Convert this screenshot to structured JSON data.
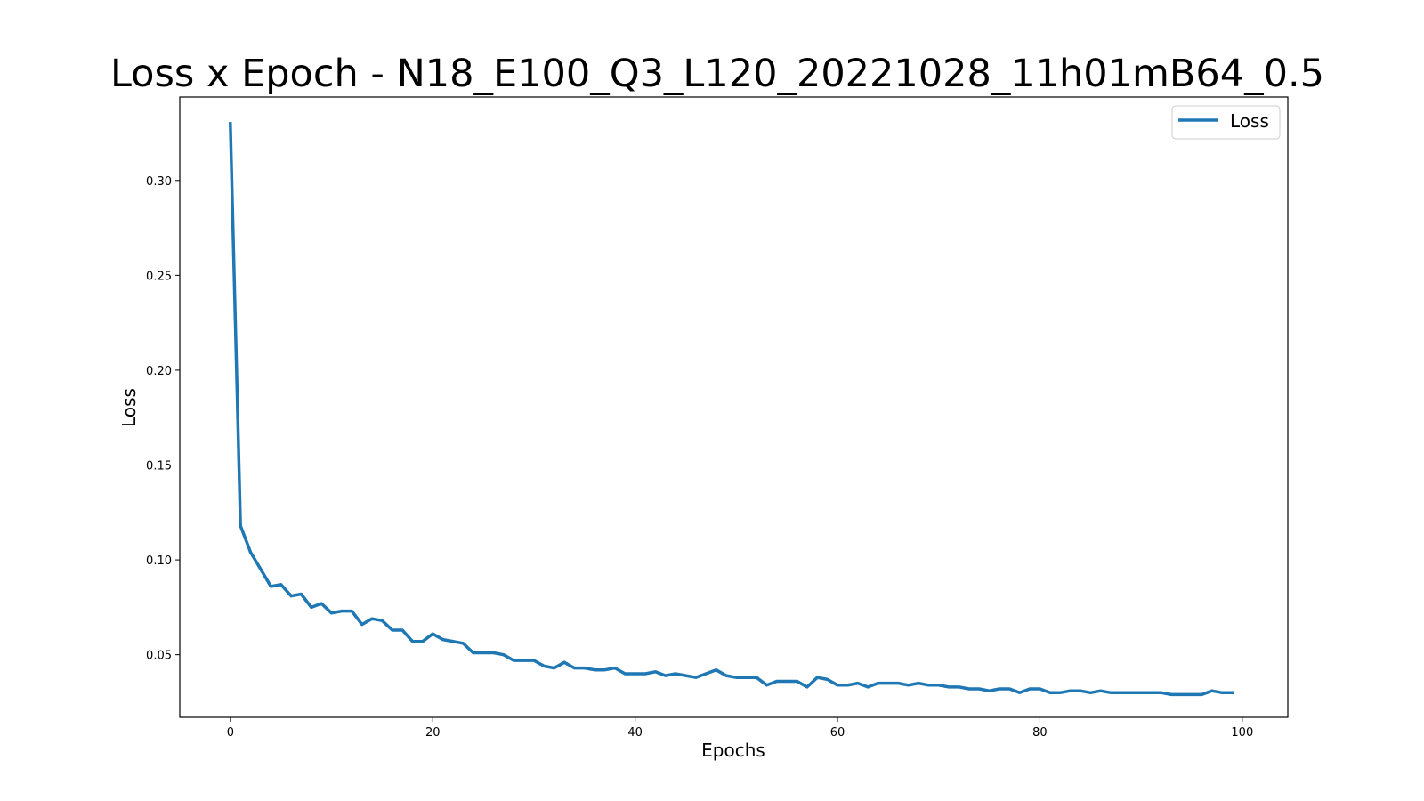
{
  "chart_data": {
    "type": "line",
    "title": "Loss x Epoch - N18_E100_Q3_L120_20221028_11h01mB64_0.5",
    "xlabel": "Epochs",
    "ylabel": "Loss",
    "xlim": [
      -5,
      104.5
    ],
    "ylim": [
      0.017,
      0.344
    ],
    "xticks": [
      0,
      20,
      40,
      60,
      80,
      100
    ],
    "xtick_labels": [
      "0",
      "20",
      "40",
      "60",
      "80",
      "100"
    ],
    "yticks": [
      0.05,
      0.1,
      0.15,
      0.2,
      0.25,
      0.3
    ],
    "ytick_labels": [
      "0.05",
      "0.10",
      "0.15",
      "0.20",
      "0.25",
      "0.30"
    ],
    "grid": false,
    "legend_position": "top-right",
    "series": [
      {
        "name": "Loss",
        "color": "#1f77b4",
        "x": [
          0,
          1,
          2,
          3,
          4,
          5,
          6,
          7,
          8,
          9,
          10,
          11,
          12,
          13,
          14,
          15,
          16,
          17,
          18,
          19,
          20,
          21,
          22,
          23,
          24,
          25,
          26,
          27,
          28,
          29,
          30,
          31,
          32,
          33,
          34,
          35,
          36,
          37,
          38,
          39,
          40,
          41,
          42,
          43,
          44,
          45,
          46,
          47,
          48,
          49,
          50,
          51,
          52,
          53,
          54,
          55,
          56,
          57,
          58,
          59,
          60,
          61,
          62,
          63,
          64,
          65,
          66,
          67,
          68,
          69,
          70,
          71,
          72,
          73,
          74,
          75,
          76,
          77,
          78,
          79,
          80,
          81,
          82,
          83,
          84,
          85,
          86,
          87,
          88,
          89,
          90,
          91,
          92,
          93,
          94,
          95,
          96,
          97,
          98,
          99
        ],
        "y": [
          0.33,
          0.118,
          0.104,
          0.095,
          0.086,
          0.087,
          0.081,
          0.082,
          0.075,
          0.077,
          0.072,
          0.073,
          0.073,
          0.066,
          0.069,
          0.068,
          0.063,
          0.063,
          0.057,
          0.057,
          0.061,
          0.058,
          0.057,
          0.056,
          0.051,
          0.051,
          0.051,
          0.05,
          0.047,
          0.047,
          0.047,
          0.044,
          0.043,
          0.046,
          0.043,
          0.043,
          0.042,
          0.042,
          0.043,
          0.04,
          0.04,
          0.04,
          0.041,
          0.039,
          0.04,
          0.039,
          0.038,
          0.04,
          0.042,
          0.039,
          0.038,
          0.038,
          0.038,
          0.034,
          0.036,
          0.036,
          0.036,
          0.033,
          0.038,
          0.037,
          0.034,
          0.034,
          0.035,
          0.033,
          0.035,
          0.035,
          0.035,
          0.034,
          0.035,
          0.034,
          0.034,
          0.033,
          0.033,
          0.032,
          0.032,
          0.031,
          0.032,
          0.032,
          0.03,
          0.032,
          0.032,
          0.03,
          0.03,
          0.031,
          0.031,
          0.03,
          0.031,
          0.03,
          0.03,
          0.03,
          0.03,
          0.03,
          0.03,
          0.029,
          0.029,
          0.029,
          0.029,
          0.031,
          0.03,
          0.03
        ]
      }
    ]
  }
}
